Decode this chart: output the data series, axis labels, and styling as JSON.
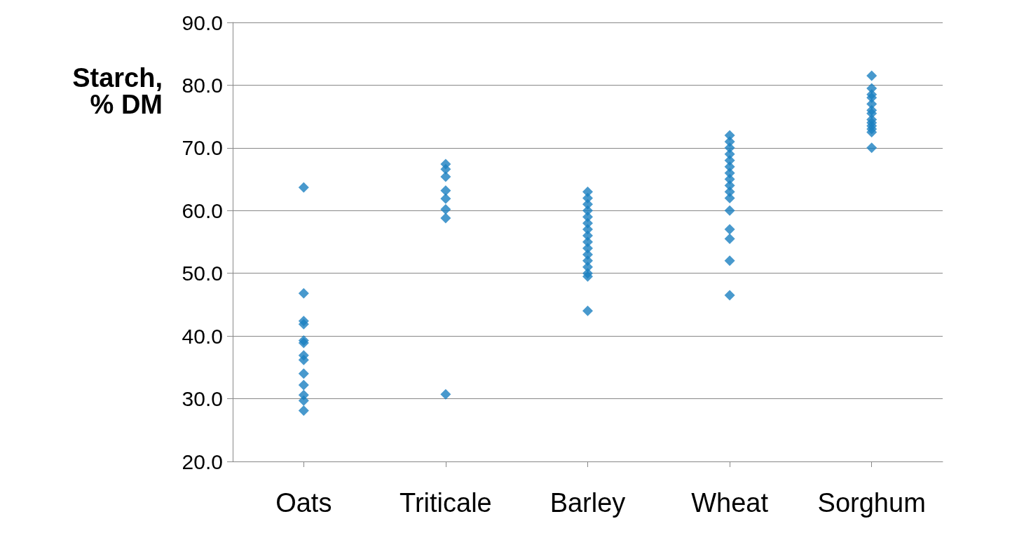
{
  "chart_data": {
    "type": "scatter",
    "ylabel": "Starch,\n% DM",
    "categories": [
      "Oats",
      "Triticale",
      "Barley",
      "Wheat",
      "Sorghum"
    ],
    "series": [
      {
        "color": "#1a7fc0",
        "x": [
          "Oats",
          "Oats",
          "Oats",
          "Oats",
          "Oats",
          "Oats",
          "Oats",
          "Oats",
          "Oats",
          "Oats",
          "Oats",
          "Oats",
          "Oats",
          "Triticale",
          "Triticale",
          "Triticale",
          "Triticale",
          "Triticale",
          "Triticale",
          "Triticale",
          "Triticale",
          "Barley",
          "Barley",
          "Barley",
          "Barley",
          "Barley",
          "Barley",
          "Barley",
          "Barley",
          "Barley",
          "Barley",
          "Barley",
          "Barley",
          "Barley",
          "Barley",
          "Barley",
          "Barley",
          "Wheat",
          "Wheat",
          "Wheat",
          "Wheat",
          "Wheat",
          "Wheat",
          "Wheat",
          "Wheat",
          "Wheat",
          "Wheat",
          "Wheat",
          "Wheat",
          "Wheat",
          "Wheat",
          "Wheat",
          "Wheat",
          "Sorghum",
          "Sorghum",
          "Sorghum",
          "Sorghum",
          "Sorghum",
          "Sorghum",
          "Sorghum",
          "Sorghum",
          "Sorghum",
          "Sorghum",
          "Sorghum",
          "Sorghum",
          "Sorghum"
        ],
        "values": [
          63.7,
          46.8,
          42.4,
          41.9,
          39.3,
          38.9,
          36.9,
          36.2,
          34,
          32.2,
          30.6,
          29.7,
          28.1,
          67.4,
          66.6,
          65.4,
          63.2,
          61.9,
          60.2,
          58.8,
          30.7,
          63,
          62,
          61,
          60,
          59,
          58,
          57,
          56,
          55,
          54,
          53,
          52,
          51,
          50,
          49.5,
          44,
          72,
          71,
          70,
          69,
          68,
          67,
          66,
          65,
          64,
          63,
          62,
          60,
          57,
          55.5,
          52,
          46.5,
          81.5,
          79.5,
          78.5,
          78,
          77,
          76,
          75.5,
          74.5,
          74,
          73.5,
          73,
          72.5,
          70
        ]
      }
    ],
    "ylim": [
      20,
      90
    ],
    "yticks": [
      {
        "value": 20,
        "label": "20.0"
      },
      {
        "value": 30,
        "label": "30.0"
      },
      {
        "value": 40,
        "label": "40.0"
      },
      {
        "value": 50,
        "label": "50.0"
      },
      {
        "value": 60,
        "label": "60.0"
      },
      {
        "value": 70,
        "label": "70.0"
      },
      {
        "value": 80,
        "label": "80.0"
      },
      {
        "value": 90,
        "label": "90.0"
      }
    ],
    "grid": "y",
    "marker": "diamond"
  }
}
